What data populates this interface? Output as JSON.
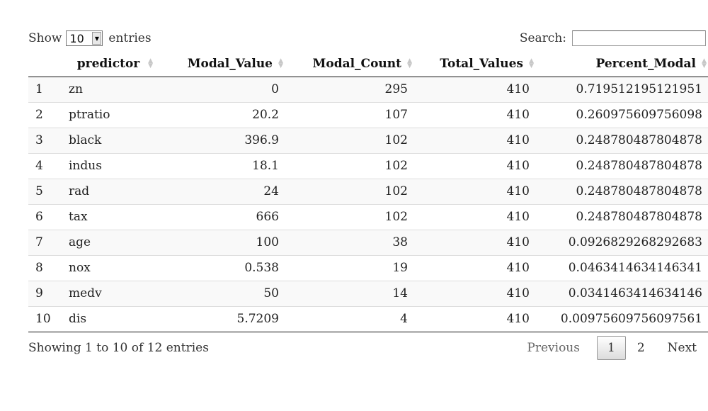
{
  "length": {
    "prefix": "Show",
    "selected": "10",
    "suffix": "entries"
  },
  "filter": {
    "label": "Search:",
    "value": ""
  },
  "columns": [
    "",
    "predictor",
    "Modal_Value",
    "Modal_Count",
    "Total_Values",
    "Percent_Modal"
  ],
  "rows": [
    [
      "1",
      "zn",
      "0",
      "295",
      "410",
      "0.719512195121951"
    ],
    [
      "2",
      "ptratio",
      "20.2",
      "107",
      "410",
      "0.260975609756098"
    ],
    [
      "3",
      "black",
      "396.9",
      "102",
      "410",
      "0.248780487804878"
    ],
    [
      "4",
      "indus",
      "18.1",
      "102",
      "410",
      "0.248780487804878"
    ],
    [
      "5",
      "rad",
      "24",
      "102",
      "410",
      "0.248780487804878"
    ],
    [
      "6",
      "tax",
      "666",
      "102",
      "410",
      "0.248780487804878"
    ],
    [
      "7",
      "age",
      "100",
      "38",
      "410",
      "0.0926829268292683"
    ],
    [
      "8",
      "nox",
      "0.538",
      "19",
      "410",
      "0.0463414634146341"
    ],
    [
      "9",
      "medv",
      "50",
      "14",
      "410",
      "0.0341463414634146"
    ],
    [
      "10",
      "dis",
      "5.7209",
      "4",
      "410",
      "0.00975609756097561"
    ]
  ],
  "info": "Showing 1 to 10 of 12 entries",
  "paging": {
    "previous": "Previous",
    "pages": [
      "1",
      "2"
    ],
    "next": "Next"
  },
  "icons": {
    "sort": "sort-both-icon",
    "dropdown": "dropdown-arrow-icon"
  }
}
